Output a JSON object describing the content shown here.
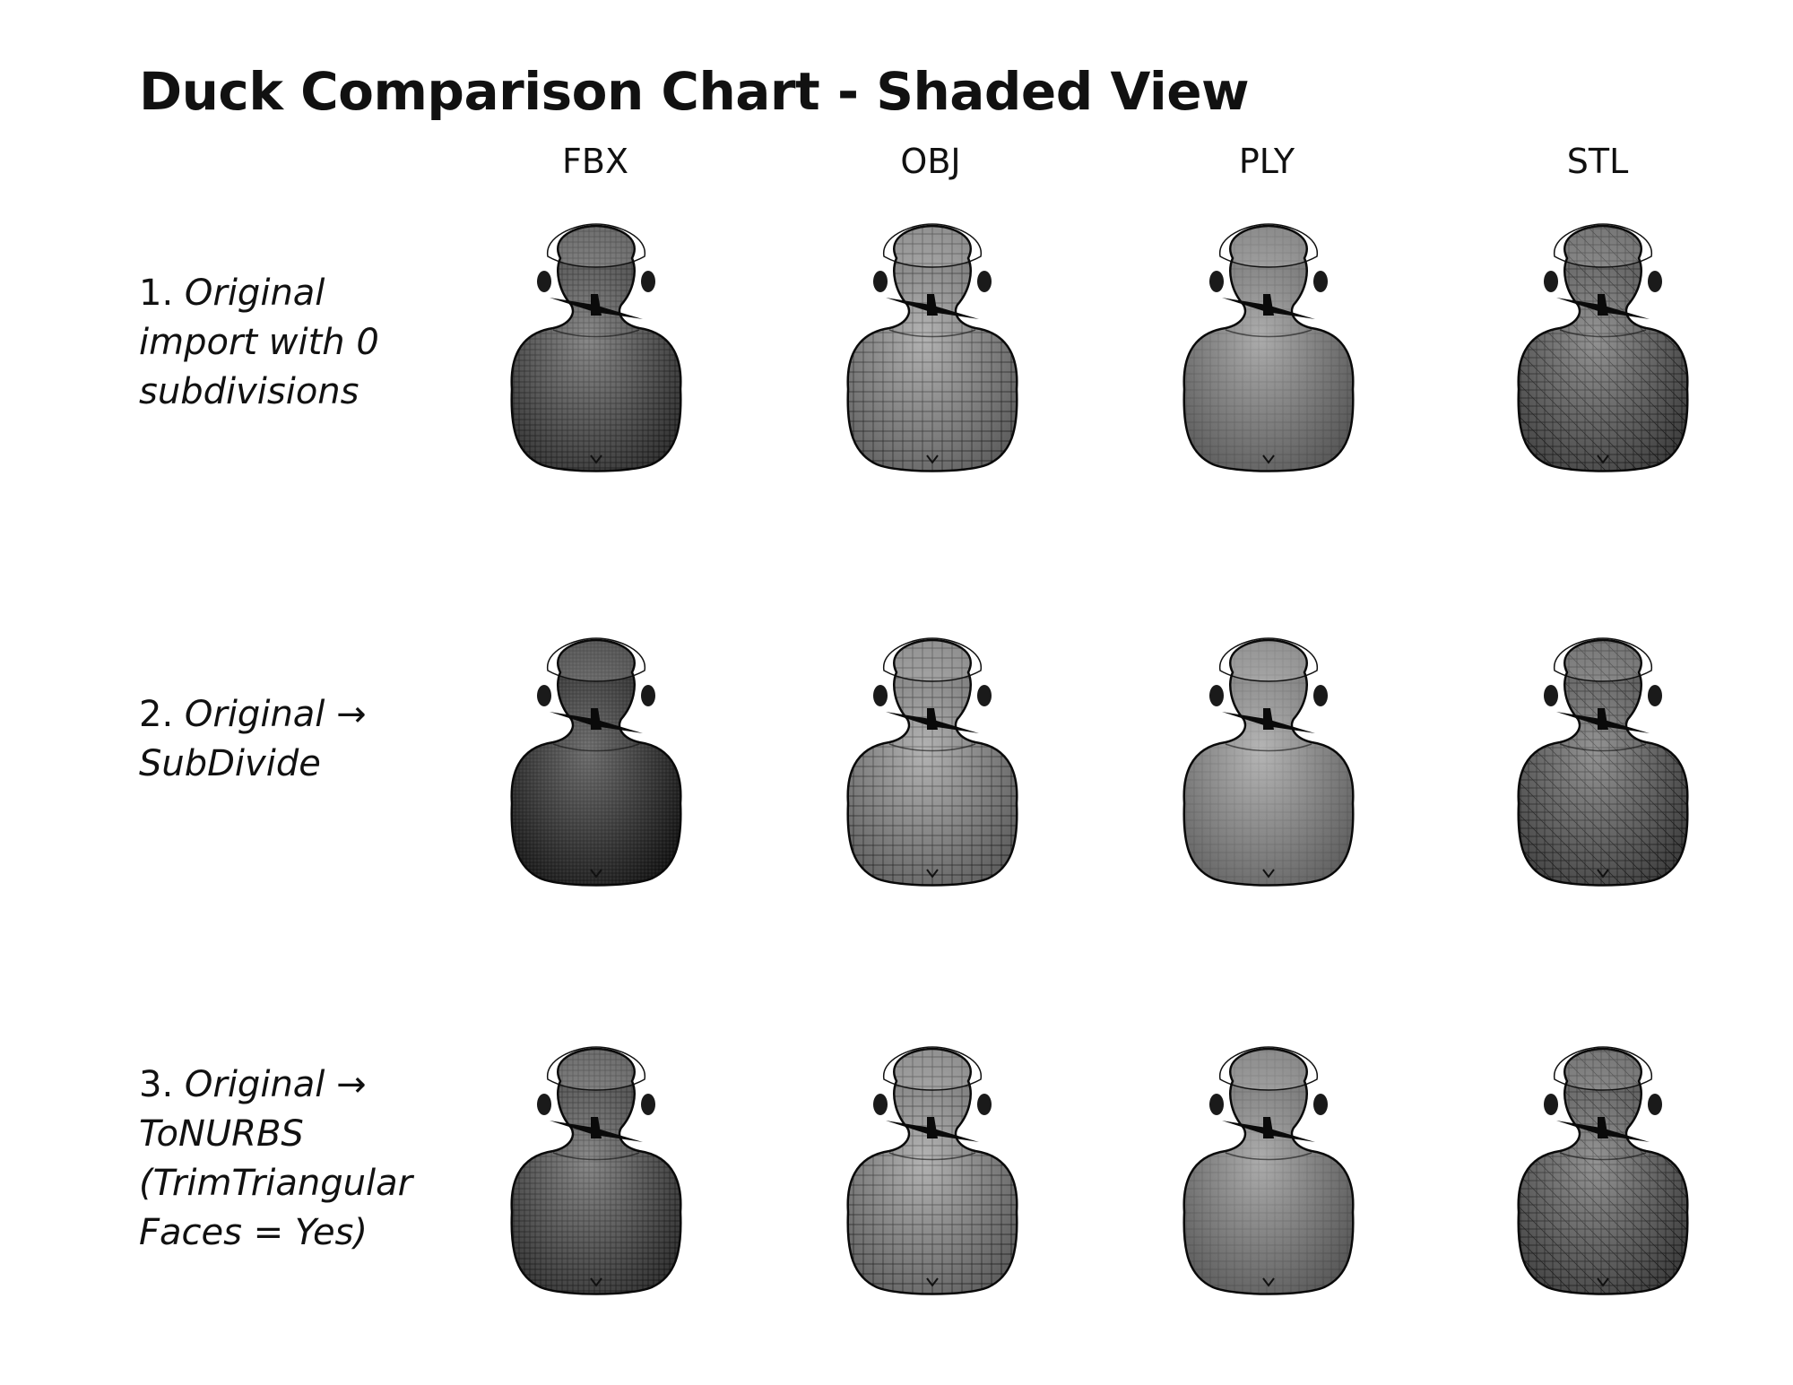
{
  "title": "Duck Comparison Chart - Shaded View",
  "columns": [
    "FBX",
    "OBJ",
    "PLY",
    "STL"
  ],
  "rows": [
    {
      "number": "1.",
      "lines": [
        "Original",
        "import with 0",
        "subdivisions"
      ]
    },
    {
      "number": "2.",
      "lines": [
        "Original →",
        "SubDivide"
      ]
    },
    {
      "number": "3.",
      "lines": [
        "Original →",
        "ToNURBS",
        "(TrimTriangular",
        "Faces = Yes)"
      ]
    }
  ],
  "cells": [
    [
      "fbx",
      "obj",
      "ply",
      "stl"
    ],
    [
      "fbx-dark",
      "obj",
      "ply-light",
      "stl"
    ],
    [
      "fbx",
      "obj",
      "ply",
      "stl"
    ]
  ],
  "styles": {
    "fbx": {
      "body": "#4a4a4a",
      "grid": "#111111",
      "spacing": 6,
      "tri": false
    },
    "fbx-dark": {
      "body": "#2a2a2a",
      "grid": "#050505",
      "spacing": 4,
      "tri": false
    },
    "obj": {
      "body": "#8a8a8a",
      "grid": "#1a1a1a",
      "spacing": 11,
      "tri": false
    },
    "ply": {
      "body": "#808080",
      "grid": "#5e5e5e",
      "spacing": 9,
      "tri": false
    },
    "ply-light": {
      "body": "#8e8e8e",
      "grid": "#707070",
      "spacing": 9,
      "tri": false
    },
    "stl": {
      "body": "#5a5a5a",
      "grid": "#0d0d0d",
      "spacing": 9,
      "tri": true
    }
  }
}
